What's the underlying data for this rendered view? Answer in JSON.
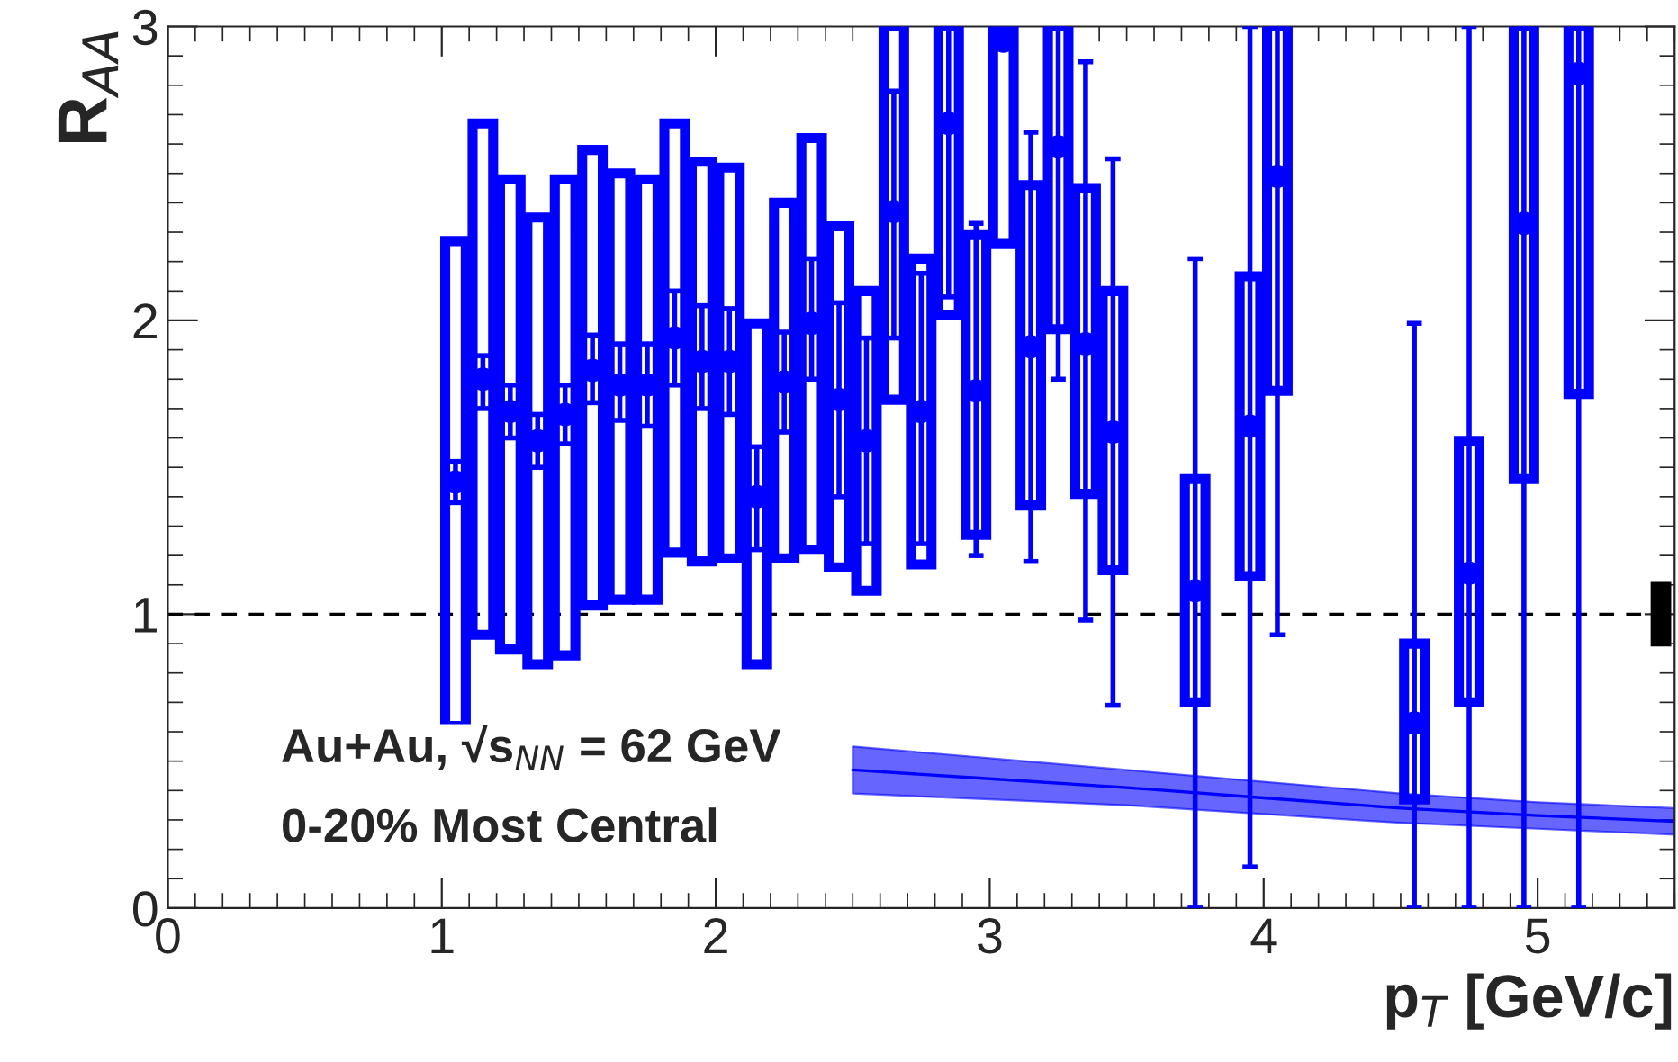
{
  "chart_data": {
    "type": "scatter",
    "xlabel": "p$_{T}$ [GeV/c]",
    "ylabel": "R$_{AA}$",
    "xlim": [
      0,
      5.5
    ],
    "ylim": [
      0,
      3
    ],
    "xticks": [
      0,
      1,
      2,
      3,
      4,
      5
    ],
    "yticks": [
      0,
      1,
      2,
      3
    ],
    "grid": false,
    "legend": false,
    "annotations": [
      "Au+Au, √s$_{NN}$ = 62 GeV",
      "0-20% Most Central"
    ],
    "ref_lines": [
      {
        "axis": "y",
        "value": 1,
        "color": "#000000",
        "line_style": "dashed"
      }
    ],
    "series": [
      {
        "type": "line",
        "color": "#0000ff",
        "x": [
          2.5,
          3,
          3.5,
          4,
          4.5,
          5,
          5.5
        ],
        "values": [
          0.47,
          0.44,
          0.41,
          0.375,
          0.34,
          0.315,
          0.295
        ],
        "lower": [
          0.39,
          0.37,
          0.35,
          0.32,
          0.29,
          0.27,
          0.25
        ],
        "upper": [
          0.55,
          0.51,
          0.47,
          0.43,
          0.39,
          0.36,
          0.34
        ]
      },
      {
        "type": "bar",
        "color": "#0000ff",
        "x": [
          1.05,
          1.15,
          1.25,
          1.35,
          1.45,
          1.55,
          1.65,
          1.75,
          1.85,
          1.95,
          2.05,
          2.15,
          2.25,
          2.35,
          2.45,
          2.55,
          2.65,
          2.75,
          2.85,
          2.95,
          3.05,
          3.15,
          3.25,
          3.35,
          3.45,
          3.75,
          3.95,
          4.05,
          4.55,
          4.75,
          4.95,
          5.15
        ],
        "base": [
          0.62,
          0.93,
          0.88,
          0.83,
          0.86,
          1.03,
          1.05,
          1.05,
          1.21,
          1.18,
          1.19,
          0.83,
          1.19,
          1.22,
          1.16,
          1.08,
          1.73,
          1.17,
          2.02,
          1.27,
          2.26,
          1.37,
          1.97,
          1.41,
          1.15,
          0.7,
          1.13,
          1.76,
          0.37,
          0.7,
          1.46,
          1.75
        ],
        "values": [
          1.65,
          1.74,
          1.6,
          1.52,
          1.62,
          1.55,
          1.45,
          1.43,
          1.46,
          1.36,
          1.33,
          1.16,
          1.21,
          1.4,
          1.16,
          1.02,
          1.27,
          1.04,
          0.98,
          1.02,
          0.74,
          1.09,
          1.03,
          1.04,
          0.95,
          0.76,
          1.02,
          1.24,
          0.53,
          0.89,
          1.54,
          1.25
        ]
      },
      {
        "color": "#0000ff",
        "marker": "circle",
        "x": [
          1.05,
          1.15,
          1.25,
          1.35,
          1.45,
          1.55,
          1.65,
          1.75,
          1.85,
          1.95,
          2.05,
          2.15,
          2.25,
          2.35,
          2.45,
          2.55,
          2.65,
          2.75,
          2.85,
          2.95,
          3.05,
          3.15,
          3.25,
          3.35,
          3.45,
          3.75,
          3.95,
          4.05,
          4.55,
          4.75,
          4.95,
          5.15
        ],
        "values": [
          1.45,
          1.8,
          1.69,
          1.59,
          1.68,
          1.83,
          1.78,
          1.78,
          1.94,
          1.86,
          1.86,
          1.4,
          1.79,
          1.99,
          1.73,
          1.59,
          2.37,
          1.69,
          2.67,
          1.76,
          2.95,
          1.91,
          2.59,
          1.92,
          1.62,
          1.08,
          1.64,
          2.49,
          0.63,
          1.14,
          2.33,
          2.84
        ],
        "errors": [
          [
            1.38,
            1.52
          ],
          [
            1.7,
            1.88
          ],
          [
            1.6,
            1.78
          ],
          [
            1.5,
            1.68
          ],
          [
            1.58,
            1.78
          ],
          [
            1.72,
            1.95
          ],
          [
            1.66,
            1.92
          ],
          [
            1.64,
            1.92
          ],
          [
            1.78,
            2.1
          ],
          [
            1.7,
            2.05
          ],
          [
            1.68,
            2.04
          ],
          [
            1.22,
            1.57
          ],
          [
            1.62,
            1.96
          ],
          [
            1.8,
            2.21
          ],
          [
            1.4,
            2.06
          ],
          [
            1.24,
            1.94
          ],
          [
            1.94,
            2.78
          ],
          [
            1.24,
            2.16
          ],
          [
            2.08,
            3.0
          ],
          [
            1.2,
            2.33
          ],
          null,
          [
            1.18,
            2.64
          ],
          [
            1.8,
            3.0
          ],
          [
            0.98,
            2.88
          ],
          [
            0.69,
            2.55
          ],
          [
            0.0,
            2.21
          ],
          [
            0.14,
            3.0
          ],
          [
            0.93,
            3.0
          ],
          [
            0.0,
            1.99
          ],
          [
            0.0,
            3.0
          ],
          [
            0.0,
            3.0
          ],
          [
            0.0,
            3.0
          ]
        ]
      },
      {
        "type": "bar",
        "color": "#000000",
        "x": [
          5.45
        ],
        "base": [
          0.89
        ],
        "values": [
          0.22
        ]
      }
    ]
  }
}
